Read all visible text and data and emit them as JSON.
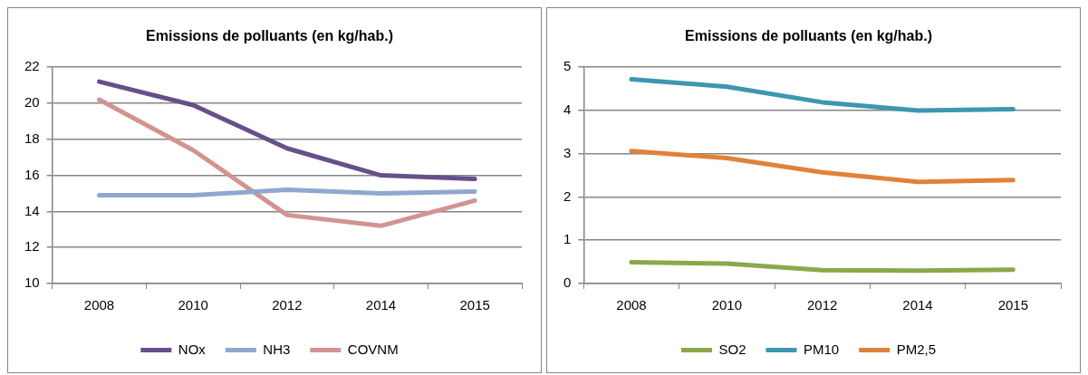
{
  "chart_data": [
    {
      "type": "line",
      "title": "Emissions de polluants (en kg/hab.)",
      "categories": [
        "2008",
        "2010",
        "2012",
        "2014",
        "2015"
      ],
      "ylim": [
        10,
        22
      ],
      "yticks": [
        10,
        12,
        14,
        16,
        18,
        20,
        22
      ],
      "grid": "y",
      "legend": "bottom",
      "marker": "none",
      "series": [
        {
          "name": "NOx",
          "color": "#65508c",
          "values": [
            21.2,
            19.9,
            17.5,
            16.0,
            15.8
          ]
        },
        {
          "name": "NH3",
          "color": "#8ea8cf",
          "values": [
            14.9,
            14.9,
            15.2,
            15.0,
            15.1
          ]
        },
        {
          "name": "COVNM",
          "color": "#d39392",
          "values": [
            20.2,
            17.4,
            13.8,
            13.2,
            14.6
          ]
        }
      ]
    },
    {
      "type": "line",
      "title": "Emissions de polluants (en kg/hab.)",
      "categories": [
        "2008",
        "2010",
        "2012",
        "2014",
        "2015"
      ],
      "ylim": [
        0,
        5
      ],
      "yticks": [
        0,
        1,
        2,
        3,
        4,
        5
      ],
      "grid": "y",
      "legend": "bottom",
      "marker": "none",
      "series": [
        {
          "name": "SO2",
          "color": "#8aa84a",
          "values": [
            0.49,
            0.46,
            0.31,
            0.3,
            0.32
          ]
        },
        {
          "name": "PM10",
          "color": "#3d97b0",
          "values": [
            4.72,
            4.55,
            4.19,
            4.0,
            4.03
          ]
        },
        {
          "name": "PM2,5",
          "color": "#e0823a",
          "values": [
            3.06,
            2.9,
            2.57,
            2.35,
            2.39
          ]
        }
      ]
    }
  ]
}
